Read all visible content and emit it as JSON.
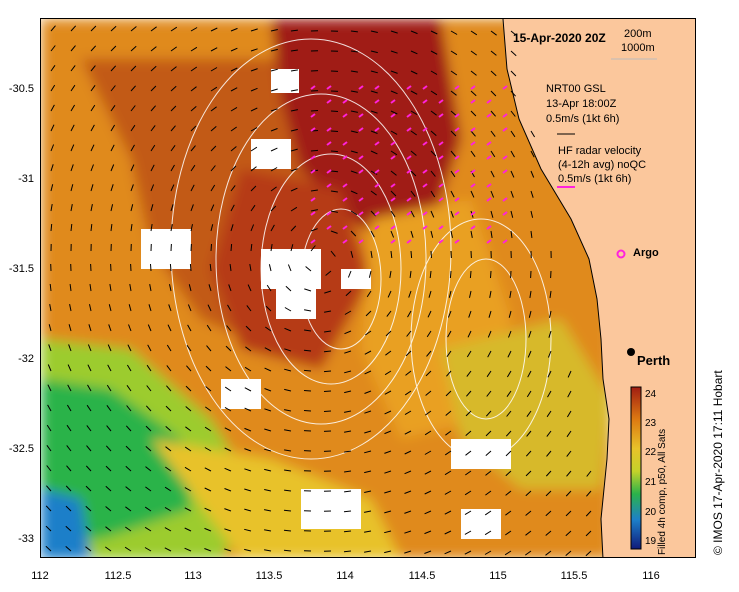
{
  "map": {
    "date": "15-Apr-2020 20Z",
    "depth_labels": [
      "200m",
      "1000m"
    ],
    "legend_gsl": [
      "NRT00 GSL",
      "13-Apr 18:00Z",
      "0.5m/s (1kt 6h)"
    ],
    "legend_hf": [
      "HF radar velocity",
      "(4-12h avg) noQC",
      "0.5m/s (1kt 6h)"
    ],
    "argo_label": "Argo",
    "city_label": "Perth",
    "credit": "© IMOS 17-Apr-2020 17:11 Hobart",
    "colorbar_label": "Filled 4h comp, p50, All Sats",
    "colorbar_ticks": [
      "24",
      "23",
      "22",
      "21",
      "20",
      "19"
    ],
    "y_ticks": [
      "-30.5",
      "-31",
      "-31.5",
      "-32",
      "-32.5",
      "-33"
    ],
    "x_ticks": [
      "112",
      "112.5",
      "113",
      "113.5",
      "114",
      "114.5",
      "115",
      "115.5",
      "116"
    ],
    "colors": {
      "land": "#fbc79c",
      "sst_24": "#a01d12",
      "sst_23": "#dd7a12",
      "sst_22": "#c4d22a",
      "sst_21": "#2bb34a",
      "sst_20": "#1d7fc9",
      "sst_19": "#101a7a",
      "hf_vector": "#ff22dd",
      "contour": "#ffffff"
    }
  }
}
